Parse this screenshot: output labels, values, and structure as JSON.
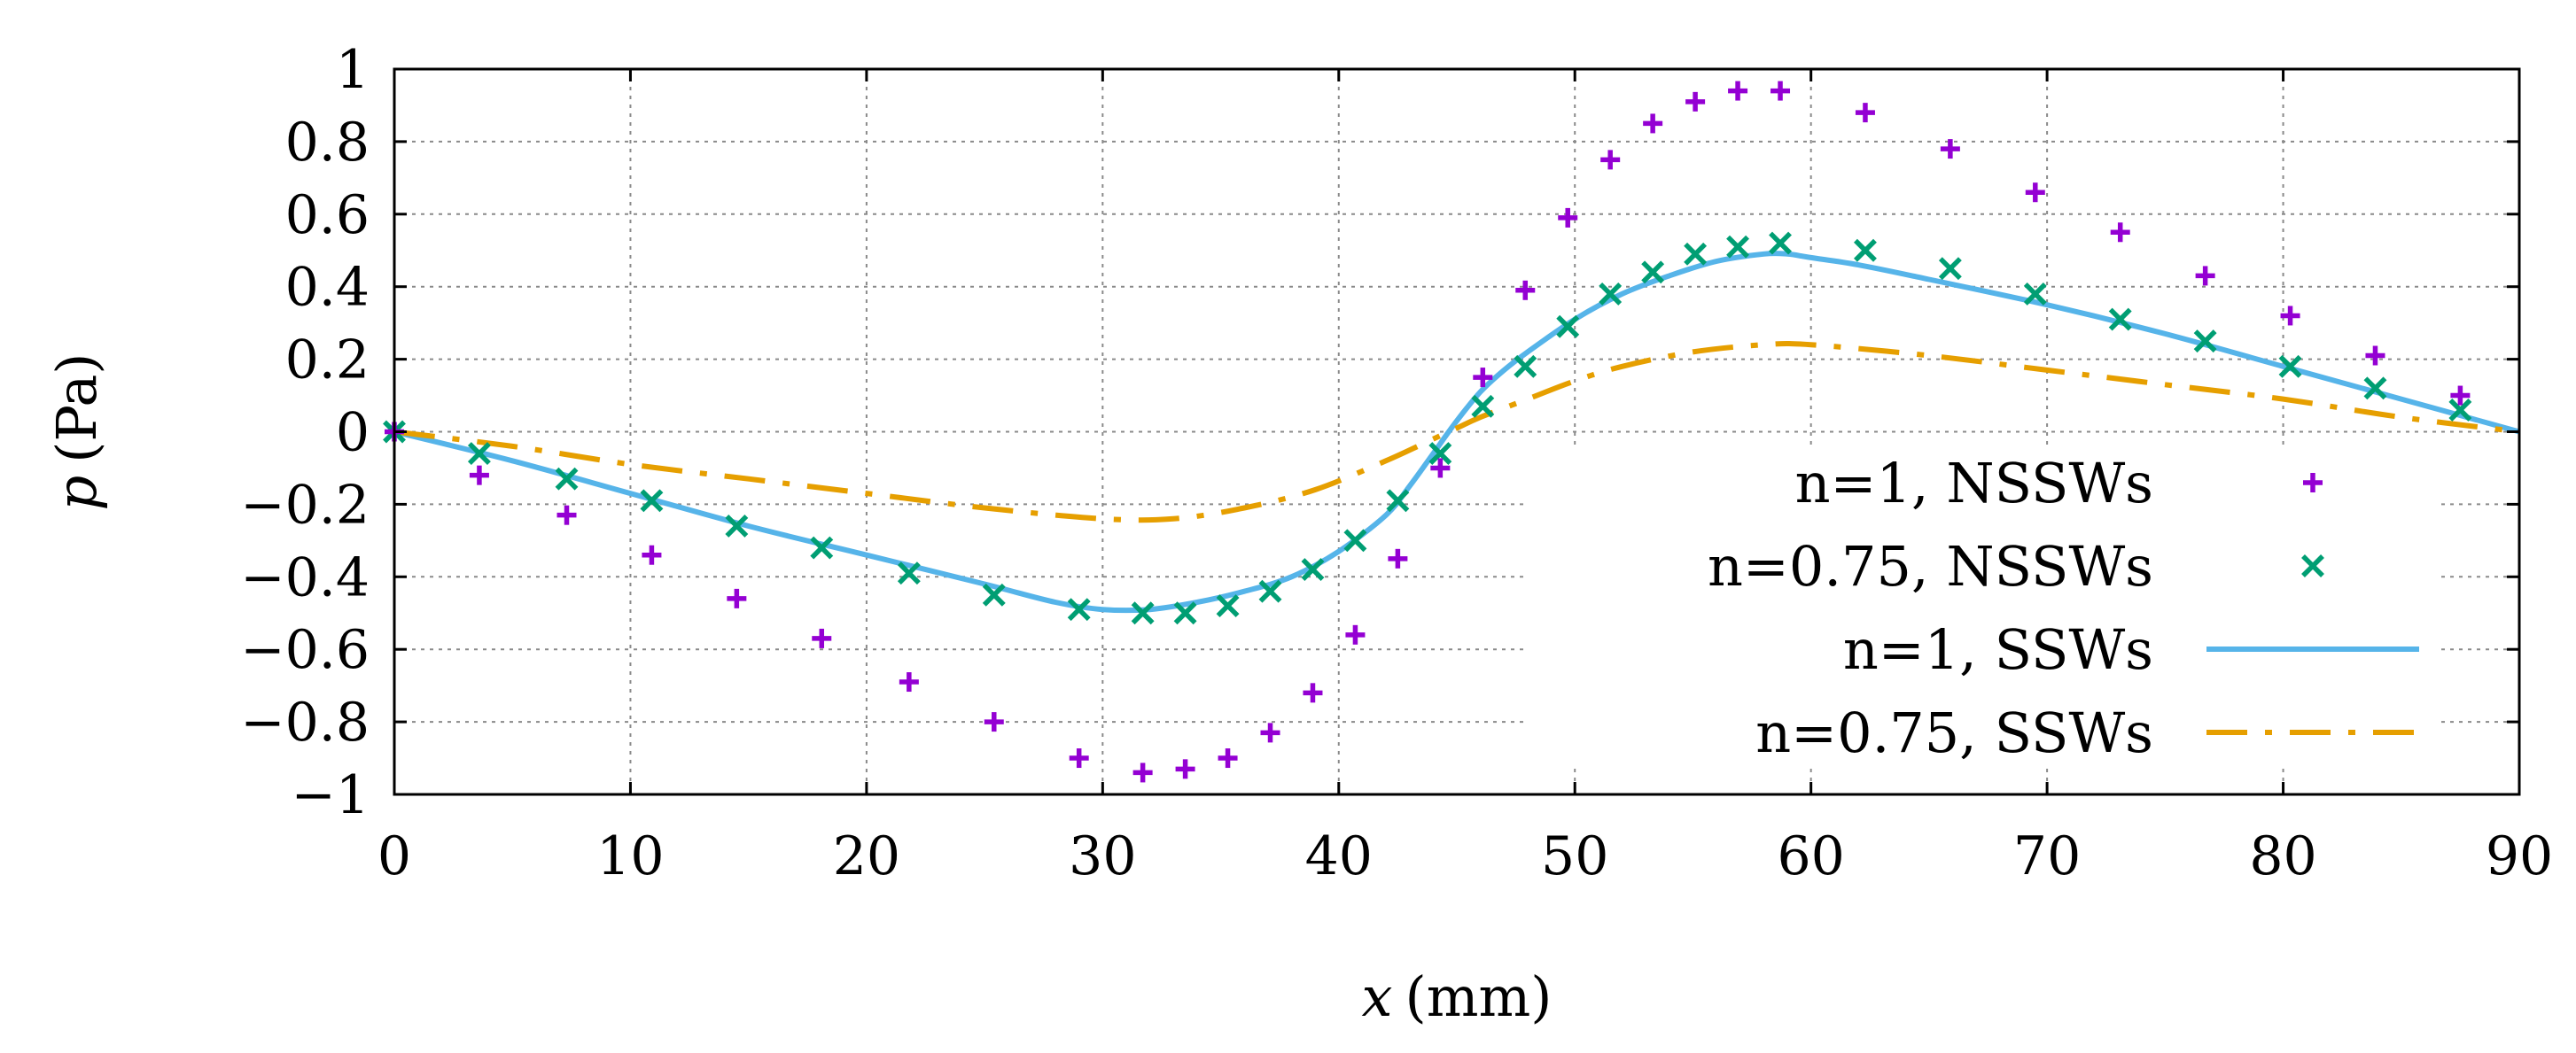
{
  "chart_data": {
    "type": "line",
    "title": "",
    "xlabel": "x",
    "xlabel_unit": "(mm)",
    "ylabel": "p",
    "ylabel_unit": "(Pa)",
    "xlim": [
      0,
      90
    ],
    "ylim": [
      -1,
      1
    ],
    "xticks": [
      0,
      10,
      20,
      30,
      40,
      50,
      60,
      70,
      80,
      90
    ],
    "yticks": [
      -1,
      -0.8,
      -0.6,
      -0.4,
      -0.2,
      0,
      0.2,
      0.4,
      0.6,
      0.8,
      1
    ],
    "xtick_labels": [
      "0",
      "10",
      "20",
      "30",
      "40",
      "50",
      "60",
      "70",
      "80",
      "90"
    ],
    "ytick_labels": [
      "−1",
      "−0.8",
      "−0.6",
      "−0.4",
      "−0.2",
      "0",
      "0.2",
      "0.4",
      "0.6",
      "0.8",
      "1"
    ],
    "grid": true,
    "legend_position": "right",
    "series": [
      {
        "name": "n=1, NSSWs",
        "style": "plus-markers",
        "color": "#9400d3",
        "x": [
          0,
          3.6,
          7.3,
          10.9,
          14.5,
          18.1,
          21.8,
          25.4,
          29.0,
          31.7,
          33.5,
          35.3,
          37.1,
          38.9,
          40.7,
          42.5,
          44.3,
          46.1,
          47.9,
          49.7,
          51.5,
          53.3,
          55.1,
          56.9,
          58.7,
          62.3,
          65.9,
          69.5,
          73.1,
          76.7,
          80.3,
          83.9,
          87.5
        ],
        "y": [
          0,
          -0.12,
          -0.23,
          -0.34,
          -0.46,
          -0.57,
          -0.69,
          -0.8,
          -0.9,
          -0.94,
          -0.93,
          -0.9,
          -0.83,
          -0.72,
          -0.56,
          -0.35,
          -0.1,
          0.15,
          0.39,
          0.59,
          0.75,
          0.85,
          0.91,
          0.94,
          0.94,
          0.88,
          0.78,
          0.66,
          0.55,
          0.43,
          0.32,
          0.21,
          0.1
        ]
      },
      {
        "name": "n=0.75, NSSWs",
        "style": "x-markers",
        "color": "#009e73",
        "x": [
          0,
          3.6,
          7.3,
          10.9,
          14.5,
          18.1,
          21.8,
          25.4,
          29.0,
          31.7,
          33.5,
          35.3,
          37.1,
          38.9,
          40.7,
          42.5,
          44.3,
          46.1,
          47.9,
          49.7,
          51.5,
          53.3,
          55.1,
          56.9,
          58.7,
          62.3,
          65.9,
          69.5,
          73.1,
          76.7,
          80.3,
          83.9,
          87.5
        ],
        "y": [
          0,
          -0.06,
          -0.13,
          -0.19,
          -0.26,
          -0.32,
          -0.39,
          -0.45,
          -0.49,
          -0.5,
          -0.5,
          -0.48,
          -0.44,
          -0.38,
          -0.3,
          -0.19,
          -0.06,
          0.07,
          0.18,
          0.29,
          0.38,
          0.44,
          0.49,
          0.51,
          0.52,
          0.5,
          0.45,
          0.38,
          0.31,
          0.25,
          0.18,
          0.12,
          0.06
        ]
      },
      {
        "name": "n=1, SSWs",
        "style": "solid",
        "color": "#56b4e9",
        "x": [
          0,
          5,
          10,
          15,
          20,
          25,
          28,
          30,
          32,
          34,
          36,
          38,
          40,
          42,
          43,
          44,
          45,
          46,
          47,
          48,
          50,
          52,
          54,
          56,
          58,
          59,
          60,
          62,
          65,
          70,
          75,
          80,
          85,
          90
        ],
        "y": [
          0,
          -0.08,
          -0.17,
          -0.26,
          -0.34,
          -0.42,
          -0.47,
          -0.49,
          -0.49,
          -0.47,
          -0.44,
          -0.4,
          -0.33,
          -0.23,
          -0.15,
          -0.06,
          0.03,
          0.11,
          0.17,
          0.22,
          0.31,
          0.38,
          0.43,
          0.47,
          0.49,
          0.49,
          0.48,
          0.46,
          0.42,
          0.35,
          0.27,
          0.18,
          0.09,
          0
        ]
      },
      {
        "name": "n=0.75, SSWs",
        "style": "dash-dot",
        "color": "#e69f00",
        "x": [
          0,
          5,
          10,
          15,
          20,
          25,
          30,
          33,
          36,
          39,
          42,
          44,
          45,
          46,
          48,
          50,
          52,
          55,
          58,
          60,
          65,
          70,
          75,
          80,
          85,
          90
        ],
        "y": [
          0,
          -0.04,
          -0.09,
          -0.13,
          -0.17,
          -0.21,
          -0.24,
          -0.24,
          -0.21,
          -0.16,
          -0.08,
          -0.02,
          0.01,
          0.04,
          0.09,
          0.14,
          0.18,
          0.22,
          0.24,
          0.24,
          0.21,
          0.17,
          0.13,
          0.09,
          0.04,
          0
        ]
      }
    ]
  }
}
